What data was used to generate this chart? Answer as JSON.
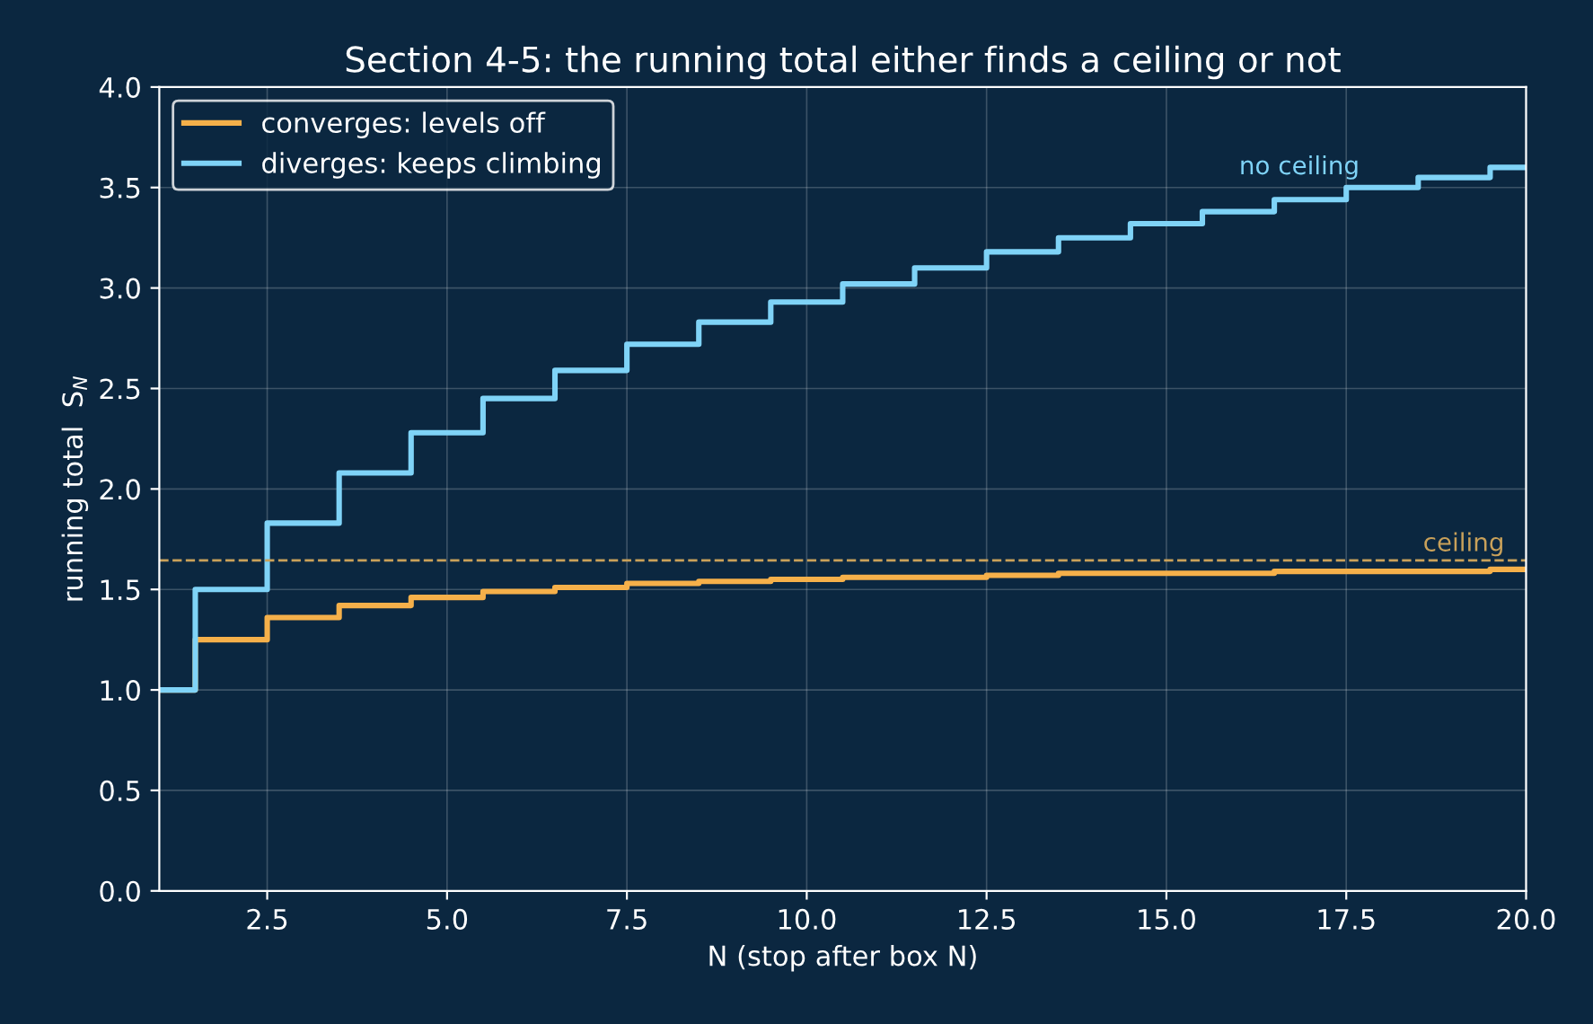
{
  "chart_data": {
    "type": "step",
    "title": "Section 4-5: the running total either finds a ceiling or not",
    "xlabel": "N (stop after box N)",
    "ylabel": "running total  S$_{N}$",
    "x": [
      1,
      2,
      3,
      4,
      5,
      6,
      7,
      8,
      9,
      10,
      11,
      12,
      13,
      14,
      15,
      16,
      17,
      18,
      19,
      20
    ],
    "series": [
      {
        "name": "converges: levels off",
        "color": "#f5b04a",
        "values": [
          1.0,
          1.25,
          1.36,
          1.42,
          1.46,
          1.49,
          1.51,
          1.53,
          1.54,
          1.55,
          1.56,
          1.56,
          1.57,
          1.58,
          1.58,
          1.58,
          1.59,
          1.59,
          1.59,
          1.6
        ]
      },
      {
        "name": "diverges: keeps climbing",
        "color": "#7fd3f7",
        "values": [
          1.0,
          1.5,
          1.83,
          2.08,
          2.28,
          2.45,
          2.59,
          2.72,
          2.83,
          2.93,
          3.02,
          3.1,
          3.18,
          3.25,
          3.32,
          3.38,
          3.44,
          3.5,
          3.55,
          3.6
        ]
      }
    ],
    "ref_lines": [
      {
        "axis": "y",
        "value": 1.645,
        "label": "ceiling",
        "color": "#c9a15a",
        "line_style": "dashed"
      }
    ],
    "annotations": [
      "no ceiling"
    ],
    "xlim": [
      1,
      20
    ],
    "xticks": [
      2.5,
      {
        "value": 5,
        "label": "5.0"
      },
      7.5,
      {
        "value": 10,
        "label": "10.0"
      },
      12.5,
      {
        "value": 15,
        "label": "15.0"
      },
      17.5,
      {
        "value": 20,
        "label": "20.0"
      }
    ],
    "ylim": [
      0,
      4
    ],
    "yticks": [
      {
        "value": 0,
        "label": "0.0"
      },
      0.5,
      {
        "value": 1,
        "label": "1.0"
      },
      1.5,
      {
        "value": 2,
        "label": "2.0"
      },
      2.5,
      {
        "value": 3,
        "label": "3.0"
      },
      3.5,
      {
        "value": 4,
        "label": "4.0"
      }
    ],
    "grid": true,
    "legend": "top left",
    "line_style": "solid",
    "marker": "none"
  }
}
